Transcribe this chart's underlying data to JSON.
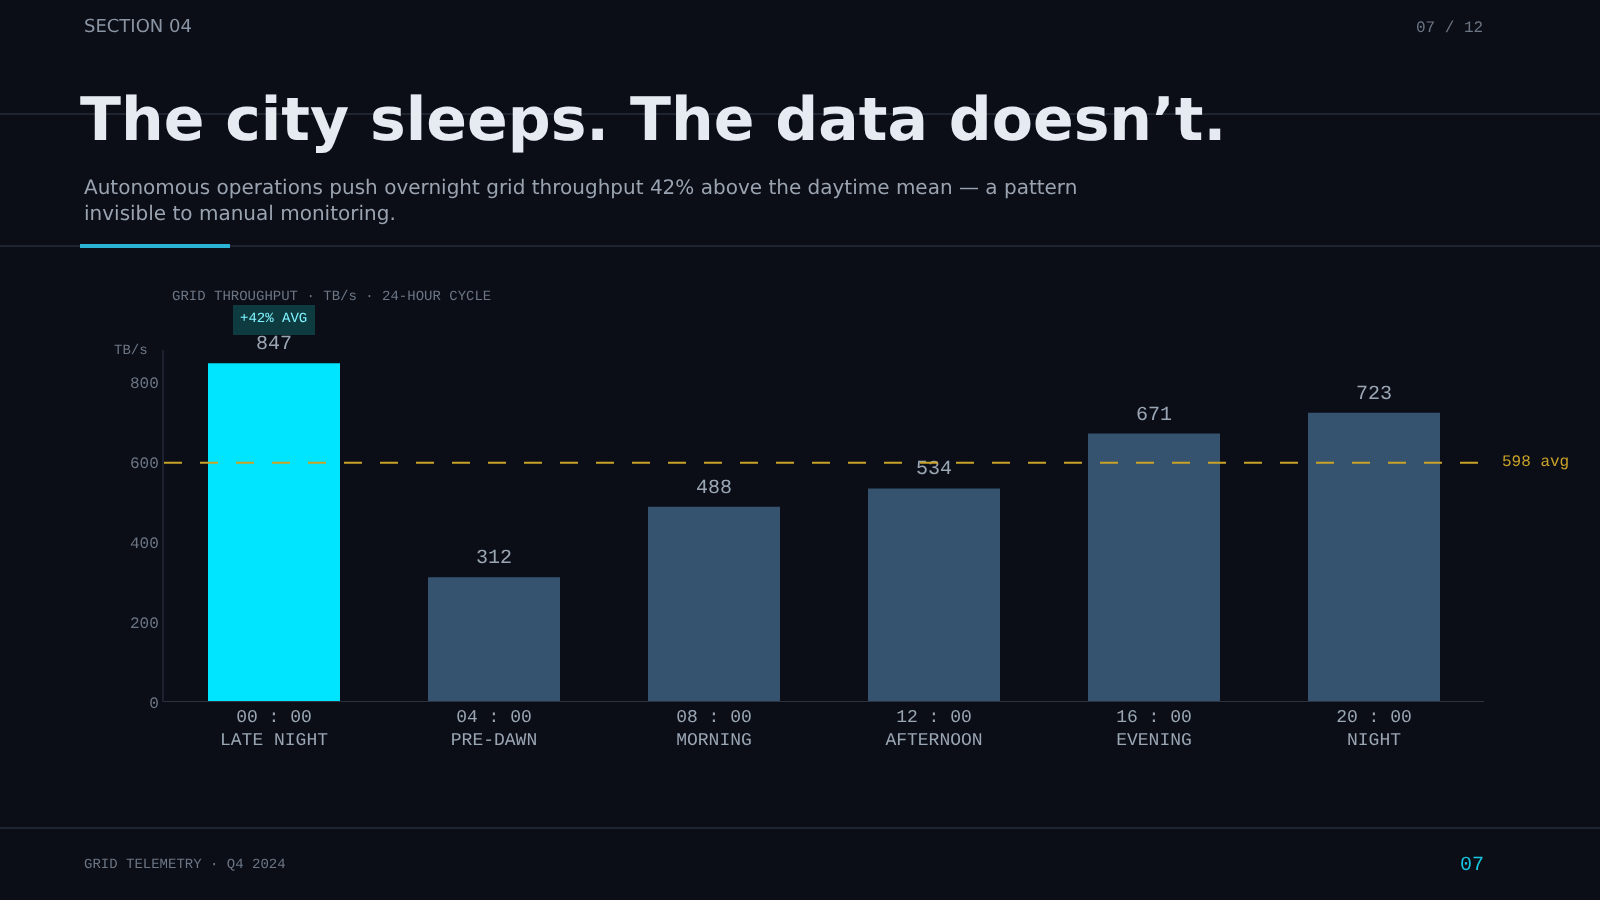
{
  "chart_data": {
    "type": "bar",
    "title": "The city sleeps. The data doesn’t.",
    "subtitle": "Autonomous operations push overnight grid throughput 42% above the daytime mean — a pattern invisible to manual monitoring.",
    "ylabel": "TB/s",
    "categories": [
      "00 : 00\nLATE NIGHT",
      "04 : 00\nPRE-DAWN",
      "08 : 00\nMORNING",
      "12 : 00\nAFTERNOON",
      "16 : 00\nEVENING",
      "20 : 00\nNIGHT"
    ],
    "values": [
      847,
      312,
      488,
      534,
      671,
      723
    ],
    "colors": [
      "#00e5ff",
      "#35536f",
      "#35536f",
      "#35536f",
      "#35536f",
      "#35536f"
    ],
    "data_labels": true,
    "ylim": [
      0,
      880
    ],
    "yticks": [
      0,
      200,
      400,
      600,
      800
    ],
    "grid": false,
    "ref_lines": [
      {
        "axis": "y",
        "value": 598,
        "label": "598 avg",
        "color": "#c9a227",
        "line_style": "dashed"
      }
    ],
    "annotations": [
      "+42% AVG",
      "GRID THROUGHPUT · TB/s · 24-HOUR CYCLE",
      "SECTION 04",
      "07 / 12",
      "GRID TELEMETRY · Q4 2024",
      "07"
    ]
  }
}
